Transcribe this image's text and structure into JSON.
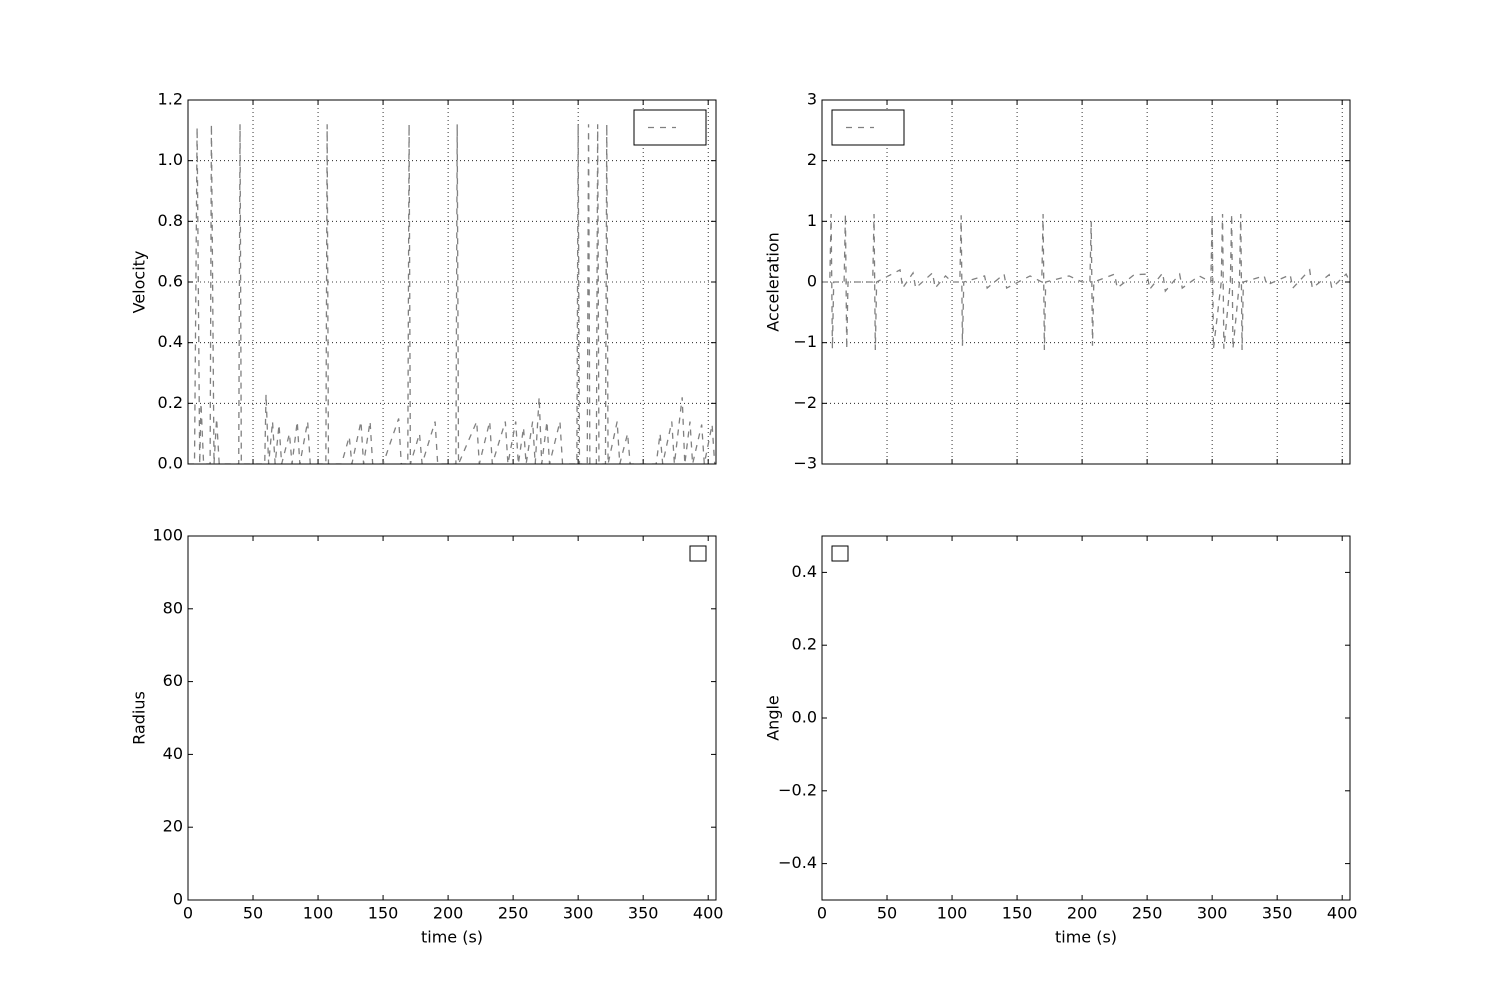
{
  "chart_data": [
    {
      "type": "line",
      "ylabel": "Velocity",
      "x": [
        0,
        5,
        7,
        9,
        10,
        12,
        17,
        18,
        20,
        22,
        24,
        30,
        39,
        40,
        41,
        50,
        59,
        60,
        62,
        65,
        67,
        70,
        72,
        78,
        80,
        84,
        86,
        92,
        94,
        100,
        106,
        107,
        108,
        118,
        124,
        126,
        133,
        135,
        140,
        142,
        150,
        162,
        164,
        169,
        170,
        171,
        178,
        180,
        190,
        192,
        200,
        206,
        207,
        208,
        222,
        224,
        232,
        234,
        244,
        246,
        252,
        254,
        258,
        260,
        265,
        267,
        270,
        272,
        276,
        278,
        286,
        288,
        299,
        300,
        301,
        307,
        308,
        309,
        314,
        315,
        316,
        321,
        322,
        323,
        330,
        332,
        338,
        340,
        350,
        360,
        363,
        365,
        372,
        374,
        380,
        382,
        386,
        388,
        395,
        397,
        403,
        405
      ],
      "series": [
        {
          "color": "#808080",
          "linestyle": "dashed",
          "values": [
            0,
            0,
            1.11,
            0,
            0.2,
            0,
            0,
            1.12,
            0,
            0.15,
            0,
            0,
            0,
            1.12,
            0,
            0,
            0,
            0.23,
            0,
            0.14,
            0,
            0.13,
            0,
            0.1,
            0,
            0.14,
            0,
            0.14,
            0,
            0,
            0,
            1.12,
            0,
            0,
            0.09,
            0,
            0.14,
            0,
            0.14,
            0,
            0,
            0.15,
            0,
            0,
            1.12,
            0,
            0.1,
            0,
            0.14,
            0,
            0,
            0,
            1.12,
            0,
            0.14,
            0,
            0.14,
            0,
            0.14,
            0,
            0.14,
            0,
            0.12,
            0,
            0.14,
            0,
            0.22,
            0,
            0.14,
            0,
            0.14,
            0,
            0,
            1.12,
            0,
            0,
            1.12,
            0,
            0,
            1.12,
            0,
            0,
            1.12,
            0,
            0.14,
            0,
            0.1,
            0,
            0,
            0,
            0.1,
            0,
            0.14,
            0,
            0.22,
            0,
            0.14,
            0,
            0.13,
            0,
            0.13,
            0
          ]
        }
      ],
      "xlim": [
        0,
        406
      ],
      "xticks": [
        0,
        50,
        100,
        150,
        200,
        250,
        300,
        350,
        400
      ],
      "xticklabels": false,
      "ylim": [
        0,
        1.2
      ],
      "yticks": [
        {
          "value": 0,
          "label": "0.0"
        },
        0.2,
        0.4,
        0.6,
        0.8,
        {
          "value": 1,
          "label": "1.0"
        },
        1.2
      ],
      "grid": true,
      "legend": "upper right"
    },
    {
      "type": "line",
      "ylabel": "Acceleration",
      "x": [
        0,
        6,
        7,
        8,
        9,
        17,
        18,
        19,
        20,
        39,
        40,
        41,
        42,
        60,
        62,
        70,
        72,
        85,
        87,
        95,
        100,
        106,
        107,
        108,
        109,
        125,
        127,
        140,
        142,
        160,
        169,
        170,
        171,
        172,
        190,
        200,
        206,
        207,
        208,
        209,
        225,
        227,
        240,
        250,
        252,
        262,
        264,
        275,
        277,
        290,
        299,
        300,
        301,
        307,
        308,
        309,
        314,
        315,
        316,
        321,
        322,
        323,
        324,
        340,
        342,
        360,
        362,
        375,
        377,
        390,
        392,
        403,
        406
      ],
      "series": [
        {
          "color": "#808080",
          "linestyle": "dashed",
          "values": [
            0,
            0,
            1.12,
            -1.1,
            0,
            0,
            1.12,
            -1.1,
            0,
            0,
            1.12,
            -1.12,
            0,
            0.2,
            -0.1,
            0.15,
            -0.1,
            0.15,
            -0.1,
            0.1,
            0,
            0,
            1.1,
            -1.05,
            0,
            0.1,
            -0.1,
            0.13,
            -0.1,
            0.1,
            0,
            1.12,
            -1.12,
            0,
            0.1,
            0,
            0,
            1,
            -1.05,
            0,
            0.13,
            -0.1,
            0.12,
            0.13,
            -0.12,
            0.15,
            -0.15,
            0.13,
            -0.1,
            0.1,
            0,
            1.12,
            -1.1,
            0,
            1.12,
            -1.1,
            0,
            1.12,
            -1.1,
            0,
            1.12,
            -1.12,
            0,
            0.1,
            -0.05,
            0.12,
            -0.1,
            0.2,
            -0.1,
            0.12,
            -0.1,
            0.13,
            0
          ]
        }
      ],
      "xlim": [
        0,
        406
      ],
      "xticks": [
        0,
        50,
        100,
        150,
        200,
        250,
        300,
        350,
        400
      ],
      "xticklabels": false,
      "ylim": [
        -3,
        3
      ],
      "yticks": [
        {
          "value": -3,
          "label": "−3"
        },
        {
          "value": -2,
          "label": "−2"
        },
        {
          "value": -1,
          "label": "−1"
        },
        0,
        1,
        2,
        3
      ],
      "grid": true,
      "legend": "upper left"
    },
    {
      "type": "line",
      "ylabel": "Radius",
      "xlabel": "time (s)",
      "xlim": [
        0,
        406
      ],
      "xticks": [
        0,
        50,
        100,
        150,
        200,
        250,
        300,
        350,
        400
      ],
      "ylim": [
        0,
        100
      ],
      "yticks": [
        0,
        20,
        40,
        60,
        80,
        100
      ],
      "grid": false,
      "legend": "upper right"
    },
    {
      "type": "line",
      "ylabel": "Angle",
      "xlabel": "time (s)",
      "xlim": [
        0,
        406
      ],
      "xticks": [
        0,
        50,
        100,
        150,
        200,
        250,
        300,
        350,
        400
      ],
      "ylim": [
        -0.5,
        0.5
      ],
      "yticks": [
        {
          "value": -0.4,
          "label": "−0.4"
        },
        {
          "value": -0.2,
          "label": "−0.2"
        },
        {
          "value": 0,
          "label": "0.0"
        },
        0.2,
        0.4
      ],
      "grid": false,
      "legend": "upper left"
    }
  ]
}
